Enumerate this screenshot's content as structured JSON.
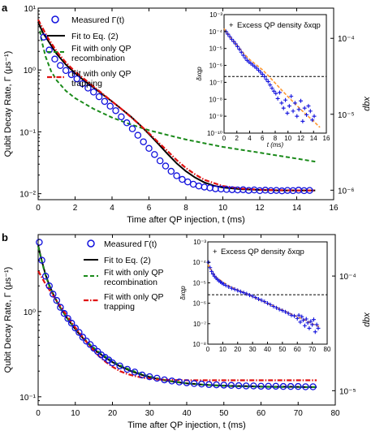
{
  "chart_data": [
    {
      "type": "scatter",
      "panel_label": "a",
      "xlabel": "Time after QP injection, t (ms)",
      "ylabel": "Qubit Decay Rate, Γ (μs⁻¹)",
      "xlim": [
        0,
        16
      ],
      "ylim": [
        0.008,
        10
      ],
      "yscale": "log",
      "xticks": [
        "0",
        "2",
        "4",
        "6",
        "8",
        "10",
        "12",
        "14",
        "16"
      ],
      "yticks": [
        {
          "v": 0.01,
          "t": "10⁻²"
        },
        {
          "v": 0.1,
          "t": "10⁻¹"
        },
        {
          "v": 1,
          "t": "10⁰"
        },
        {
          "v": 10,
          "t": "10¹"
        }
      ],
      "right_axis": {
        "label": "xqp",
        "ticks": [
          {
            "v": 0.0001,
            "t": "10⁻⁴"
          },
          {
            "v": 1e-05,
            "t": "10⁻⁵"
          },
          {
            "v": 1e-06,
            "t": "10⁻⁶"
          }
        ],
        "ylim": [
          7.5e-07,
          0.00025
        ]
      },
      "legend": [
        "Measured Γ(t)",
        "Fit to Eq. (2)",
        "Fit with only QP recombination",
        "Fit with only QP trapping"
      ],
      "series": [
        {
          "name": "Measured Γ(t)",
          "style": "circles",
          "color": "#1111dd",
          "x": [
            0.3,
            0.6,
            0.9,
            1.2,
            1.5,
            1.8,
            2.1,
            2.4,
            2.7,
            3.0,
            3.3,
            3.6,
            3.9,
            4.2,
            4.5,
            4.8,
            5.1,
            5.4,
            5.7,
            6.0,
            6.3,
            6.6,
            6.9,
            7.2,
            7.5,
            7.8,
            8.1,
            8.4,
            8.7,
            9.0,
            9.3,
            9.6,
            9.9,
            10.2,
            10.5,
            10.8,
            11.1,
            11.4,
            11.7,
            12.0,
            12.3,
            12.6,
            12.9,
            13.2,
            13.5,
            13.8,
            14.1,
            14.4,
            14.7
          ],
          "y": [
            3.4,
            2.1,
            1.5,
            1.18,
            0.98,
            0.84,
            0.72,
            0.6,
            0.51,
            0.44,
            0.37,
            0.31,
            0.26,
            0.22,
            0.175,
            0.14,
            0.112,
            0.088,
            0.069,
            0.054,
            0.043,
            0.034,
            0.028,
            0.023,
            0.0195,
            0.017,
            0.0155,
            0.0142,
            0.0133,
            0.0128,
            0.0124,
            0.012,
            0.0119,
            0.0117,
            0.0116,
            0.0115,
            0.0116,
            0.0113,
            0.0115,
            0.0112,
            0.0114,
            0.0112,
            0.0113,
            0.0111,
            0.0113,
            0.0112,
            0.0114,
            0.0112,
            0.0113
          ]
        },
        {
          "name": "Fit to Eq. (2)",
          "style": "solid",
          "color": "#000000",
          "x": [
            0,
            0.25,
            0.5,
            1,
            1.5,
            2,
            2.5,
            3,
            3.5,
            4,
            4.5,
            5,
            5.5,
            6,
            6.5,
            7,
            7.5,
            8,
            8.5,
            9,
            9.5,
            10,
            11,
            12,
            13,
            14,
            15
          ],
          "y": [
            6.0,
            4.0,
            3.1,
            1.82,
            1.22,
            0.89,
            0.67,
            0.52,
            0.4,
            0.31,
            0.235,
            0.178,
            0.13,
            0.092,
            0.064,
            0.044,
            0.031,
            0.023,
            0.0182,
            0.0152,
            0.0135,
            0.0126,
            0.0118,
            0.0115,
            0.0113,
            0.0113,
            0.0113
          ]
        },
        {
          "name": "Fit with only QP recombination",
          "style": "dashed",
          "color": "#1a8a1a",
          "x": [
            0.1,
            0.2,
            0.4,
            0.7,
            1,
            1.5,
            2,
            3,
            4,
            5,
            6,
            7,
            8,
            10,
            12,
            15
          ],
          "y": [
            4.3,
            2.9,
            1.65,
            0.96,
            0.68,
            0.46,
            0.35,
            0.235,
            0.17,
            0.132,
            0.106,
            0.089,
            0.075,
            0.057,
            0.046,
            0.033
          ]
        },
        {
          "name": "Fit with only QP trapping",
          "style": "dashdot",
          "color": "#e01010",
          "x": [
            0,
            0.5,
            1,
            1.5,
            2,
            2.5,
            3,
            3.5,
            4,
            4.5,
            5,
            5.5,
            6,
            6.5,
            7,
            7.5,
            8,
            8.5,
            9,
            10,
            11,
            12,
            13,
            14,
            15
          ],
          "y": [
            6.5,
            3.4,
            2.0,
            1.32,
            0.94,
            0.71,
            0.54,
            0.41,
            0.31,
            0.235,
            0.175,
            0.13,
            0.095,
            0.068,
            0.049,
            0.035,
            0.026,
            0.0205,
            0.0167,
            0.0133,
            0.0121,
            0.0116,
            0.0114,
            0.0113,
            0.0113
          ]
        }
      ],
      "inset": {
        "legend": "Excess QP density δxqp",
        "xlabel": "t (ms)",
        "ylabel": "δxqp",
        "xlim": [
          0,
          16
        ],
        "ylim": [
          1e-10,
          0.001
        ],
        "yscale": "log",
        "xticks": [
          "0",
          "2",
          "4",
          "6",
          "8",
          "10",
          "12",
          "14",
          "16"
        ],
        "yticks": [
          {
            "v": 0.001,
            "t": "10⁻³"
          },
          {
            "v": 0.0001,
            "t": "10⁻⁴"
          },
          {
            "v": 1e-05,
            "t": "10⁻⁵"
          },
          {
            "v": 1e-06,
            "t": "10⁻⁶"
          },
          {
            "v": 1e-07,
            "t": "10⁻⁷"
          },
          {
            "v": 1e-08,
            "t": "10⁻⁸"
          },
          {
            "v": 1e-09,
            "t": "10⁻⁹"
          },
          {
            "v": 1e-10,
            "t": "10⁻¹⁰"
          }
        ],
        "hline": 2.2e-07,
        "points": {
          "x": [
            0.3,
            0.6,
            0.9,
            1.2,
            1.5,
            1.8,
            2.1,
            2.4,
            2.7,
            3.0,
            3.3,
            3.6,
            3.9,
            4.2,
            4.5,
            4.8,
            5.1,
            5.4,
            5.7,
            6.0,
            6.3,
            6.6,
            6.9,
            7.2,
            7.5,
            7.8,
            8.1,
            8.4,
            8.7,
            9.0,
            9.3,
            9.6,
            9.9,
            10.2,
            10.5,
            10.8,
            11.1,
            11.4,
            11.7,
            12.0,
            12.3,
            12.6,
            12.9,
            13.2,
            13.5,
            13.8,
            14.1
          ],
          "y": [
            0.0001,
            7e-05,
            5e-05,
            3.5e-05,
            2.6e-05,
            1.9e-05,
            1.3e-05,
            9e-06,
            6e-06,
            4e-06,
            2.8e-06,
            2e-06,
            1.6e-06,
            1.3e-06,
            1.05e-06,
            8.5e-07,
            6.8e-07,
            5.2e-07,
            4e-07,
            3e-07,
            2.2e-07,
            1.5e-07,
            1.1e-07,
            7e-08,
            4.5e-08,
            3e-08,
            2.2e-08,
            1.1e-08,
            2.5e-08,
            6e-09,
            3e-09,
            9e-09,
            1.5e-09,
            4e-09,
            1.5e-08,
            2e-09,
            6e-09,
            1e-09,
            2.5e-09,
            8e-09,
            5e-10,
            3e-09,
            1.2e-09,
            4e-09,
            2e-09,
            6e-10,
            1e-09
          ]
        },
        "fit": {
          "x": [
            0,
            1,
            2,
            3,
            4,
            5,
            6,
            7,
            8,
            9,
            10,
            11,
            12,
            13,
            14,
            15
          ],
          "y": [
            0.00015,
            4.5e-05,
            1.6e-05,
            5.5e-06,
            2.2e-06,
            1.1e-06,
            5.5e-07,
            2.3e-07,
            9e-08,
            3.5e-08,
            1.4e-08,
            6e-09,
            2.5e-09,
            1.1e-09,
            5e-10,
            2.2e-10
          ]
        }
      }
    },
    {
      "type": "scatter",
      "panel_label": "b",
      "xlabel": "Time after QP injection, t (ms)",
      "ylabel": "Qubit Decay Rate, Γ (μs⁻¹)",
      "xlim": [
        0,
        80
      ],
      "ylim": [
        0.08,
        8
      ],
      "yscale": "log",
      "xticks": [
        "0",
        "10",
        "20",
        "30",
        "40",
        "50",
        "60",
        "70",
        "80"
      ],
      "yticks": [
        {
          "v": 0.1,
          "t": "10⁻¹"
        },
        {
          "v": 1,
          "t": "10⁰"
        }
      ],
      "right_axis": {
        "label": "xqp",
        "ticks": [
          {
            "v": 0.0001,
            "t": "10⁻⁴"
          },
          {
            "v": 1e-05,
            "t": "10⁻⁵"
          }
        ],
        "ylim": [
          7.5e-06,
          0.00023
        ]
      },
      "legend": [
        "Measured Γ(t)",
        "Fit to Eq. (2)",
        "Fit with only QP recombination",
        "Fit with only QP trapping"
      ],
      "series": [
        {
          "name": "Measured Γ(t)",
          "style": "circles",
          "color": "#1111dd",
          "x": [
            0.3,
            1,
            2,
            3,
            4,
            5,
            6,
            7,
            8,
            9,
            10,
            11,
            12,
            13,
            14,
            15,
            16,
            17,
            18,
            19,
            20,
            22,
            24,
            26,
            28,
            30,
            32,
            34,
            36,
            38,
            40,
            42,
            44,
            46,
            48,
            50,
            52,
            54,
            56,
            58,
            60,
            62,
            64,
            66,
            68,
            70,
            72,
            74
          ],
          "y": [
            6.5,
            4.0,
            2.6,
            2.0,
            1.6,
            1.35,
            1.12,
            0.95,
            0.83,
            0.73,
            0.64,
            0.57,
            0.5,
            0.45,
            0.41,
            0.37,
            0.34,
            0.31,
            0.29,
            0.27,
            0.25,
            0.23,
            0.21,
            0.195,
            0.18,
            0.172,
            0.165,
            0.158,
            0.153,
            0.149,
            0.146,
            0.143,
            0.141,
            0.139,
            0.138,
            0.137,
            0.136,
            0.135,
            0.134,
            0.134,
            0.133,
            0.133,
            0.133,
            0.132,
            0.132,
            0.132,
            0.131,
            0.131
          ]
        },
        {
          "name": "Fit to Eq. (2)",
          "style": "solid",
          "color": "#000000",
          "x": [
            0,
            1,
            2,
            3,
            4,
            5,
            6,
            8,
            10,
            12,
            14,
            16,
            18,
            20,
            22,
            25,
            28,
            31,
            34,
            37,
            40,
            44,
            48,
            52,
            56,
            60,
            64,
            68,
            72,
            75
          ],
          "y": [
            6.0,
            3.9,
            2.7,
            2.05,
            1.62,
            1.32,
            1.1,
            0.81,
            0.62,
            0.49,
            0.4,
            0.335,
            0.29,
            0.255,
            0.228,
            0.2,
            0.18,
            0.166,
            0.156,
            0.149,
            0.144,
            0.139,
            0.136,
            0.134,
            0.133,
            0.132,
            0.131,
            0.131,
            0.13,
            0.13
          ]
        },
        {
          "name": "Fit with only QP recombination",
          "style": "dashed",
          "color": "#1a8a1a",
          "x": [
            0,
            1,
            2,
            3,
            4,
            5,
            6,
            8,
            10,
            12,
            14,
            16,
            18,
            20,
            22,
            25,
            28,
            31,
            34,
            37,
            40,
            44,
            48,
            52,
            56,
            60,
            64,
            68,
            72,
            75
          ],
          "y": [
            5.8,
            3.8,
            2.65,
            2.0,
            1.6,
            1.31,
            1.09,
            0.81,
            0.63,
            0.5,
            0.41,
            0.345,
            0.298,
            0.262,
            0.234,
            0.205,
            0.184,
            0.169,
            0.158,
            0.15,
            0.144,
            0.139,
            0.135,
            0.133,
            0.132,
            0.131,
            0.13,
            0.13,
            0.13,
            0.13
          ]
        },
        {
          "name": "Fit with only QP trapping",
          "style": "dashdot",
          "color": "#e01010",
          "x": [
            0,
            2,
            4,
            6,
            8,
            10,
            12,
            14,
            16,
            18,
            20,
            22,
            24,
            26,
            28,
            30,
            32,
            35,
            38,
            41,
            45,
            50,
            55,
            60,
            65,
            70,
            75
          ],
          "y": [
            3.0,
            2.1,
            1.55,
            1.15,
            0.86,
            0.65,
            0.5,
            0.39,
            0.31,
            0.26,
            0.225,
            0.2,
            0.185,
            0.175,
            0.168,
            0.163,
            0.16,
            0.158,
            0.157,
            0.156,
            0.156,
            0.156,
            0.156,
            0.156,
            0.156,
            0.156,
            0.156
          ]
        }
      ],
      "inset": {
        "legend": "Excess QP density δxqp",
        "xlabel": "",
        "ylabel": "δxqp",
        "xlim": [
          0,
          80
        ],
        "ylim": [
          1e-08,
          0.001
        ],
        "yscale": "log",
        "xticks": [
          "0",
          "10",
          "20",
          "30",
          "40",
          "50",
          "60",
          "70",
          "80"
        ],
        "yticks": [
          {
            "v": 0.001,
            "t": "10⁻³"
          },
          {
            "v": 0.0001,
            "t": "10⁻⁴"
          },
          {
            "v": 1e-05,
            "t": "10⁻⁵"
          },
          {
            "v": 1e-06,
            "t": "10⁻⁶"
          },
          {
            "v": 1e-07,
            "t": "10⁻⁷"
          },
          {
            "v": 1e-08,
            "t": "10⁻⁸"
          }
        ],
        "hline": 2.6e-06,
        "points": {
          "x": [
            0.5,
            1.5,
            2.5,
            3.5,
            4.5,
            5.5,
            6.5,
            7.5,
            8.5,
            9.5,
            10.5,
            12,
            14,
            16,
            18,
            20,
            22,
            24,
            26,
            28,
            30,
            32,
            34,
            36,
            38,
            40,
            42,
            44,
            46,
            48,
            50,
            52,
            54,
            56,
            58,
            60,
            61,
            62,
            63,
            64,
            65,
            66,
            67,
            68,
            69,
            70,
            71,
            72,
            73,
            74
          ],
          "y": [
            0.0001,
            5.5e-05,
            3.6e-05,
            2.7e-05,
            2.1e-05,
            1.7e-05,
            1.45e-05,
            1.25e-05,
            1.1e-05,
            9.7e-06,
            8.7e-06,
            7.5e-06,
            6.3e-06,
            5.4e-06,
            4.8e-06,
            4.2e-06,
            3.7e-06,
            3.3e-06,
            2.9e-06,
            2.5e-06,
            2.2e-06,
            1.9e-06,
            1.6e-06,
            1.4e-06,
            1.2e-06,
            1e-06,
            8.5e-07,
            7e-07,
            6e-07,
            5e-07,
            4.4e-07,
            3.8e-07,
            3.2e-07,
            2.6e-07,
            2.4e-07,
            1.8e-07,
            2.6e-07,
            1.2e-07,
            2.2e-07,
            1.5e-07,
            8e-08,
            1.7e-07,
            1.1e-07,
            6e-08,
            1.3e-07,
            9e-08,
            1.6e-07,
            4e-08,
            9e-08,
            6e-08
          ]
        },
        "fit": {
          "x": [
            0,
            5,
            10,
            15,
            20,
            25,
            30,
            35,
            40,
            45,
            50,
            55,
            60,
            65,
            70,
            75
          ],
          "y": [
            8e-05,
            2e-05,
            1.1e-05,
            6.5e-06,
            4.5e-06,
            3.1e-06,
            2.1e-06,
            1.45e-06,
            1e-06,
            6.8e-07,
            4.7e-07,
            3.2e-07,
            2.2e-07,
            1.5e-07,
            1e-07,
            7e-08
          ]
        }
      }
    }
  ]
}
